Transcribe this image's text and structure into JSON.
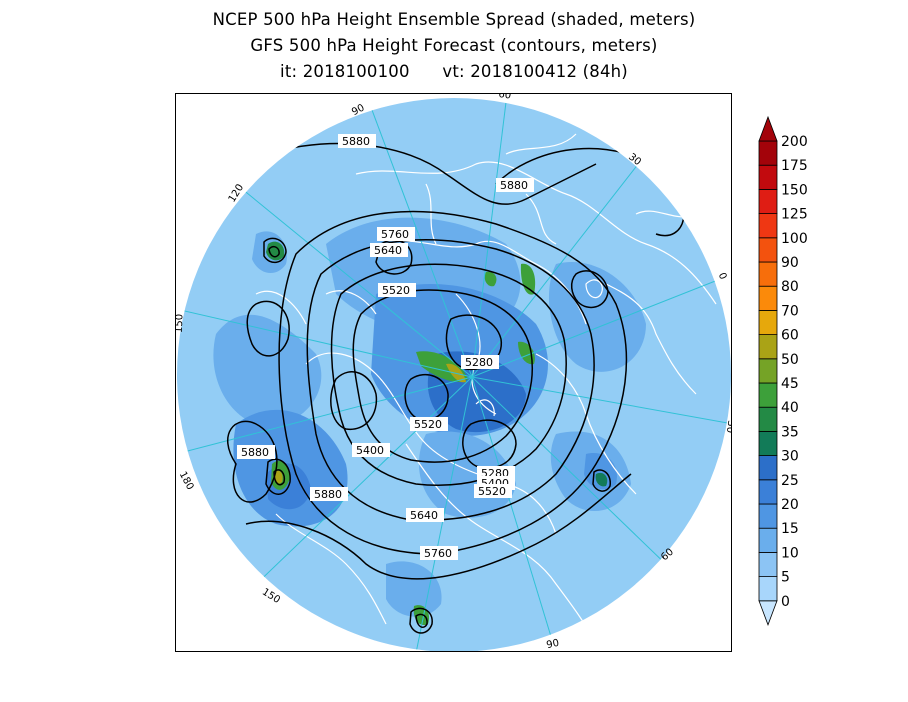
{
  "header": {
    "title_line1": "NCEP 500 hPa Height Ensemble Spread (shaded, meters)",
    "title_line2": "GFS 500 hPa Height Forecast (contours, meters)",
    "init_time": "it: 2018100100",
    "valid_time": "vt: 2018100412 (84h)"
  },
  "map": {
    "projection": "north-polar-stereographic",
    "background_color": "#93cdf5",
    "grid_color": "#31c2d6",
    "coastline_color": "#ffffff",
    "contour_color": "#000000",
    "meridian_labels": [
      "60",
      "30",
      "0",
      "30",
      "60",
      "90",
      "120",
      "150",
      "180",
      "150",
      "120",
      "90"
    ],
    "contour_labels": [
      "5880",
      "5880",
      "5760",
      "5640",
      "5520",
      "5280",
      "5520",
      "5400",
      "5280",
      "5400",
      "5520",
      "5640",
      "5760",
      "5880",
      "5880"
    ]
  },
  "colorbar": {
    "levels": [
      "0",
      "5",
      "10",
      "15",
      "20",
      "25",
      "30",
      "35",
      "40",
      "45",
      "50",
      "60",
      "70",
      "80",
      "90",
      "100",
      "125",
      "150",
      "175",
      "200"
    ],
    "colors": [
      "#c8e6ff",
      "#a8d6fb",
      "#8cc4f4",
      "#6aaeec",
      "#4f96e3",
      "#3b80d8",
      "#2c6fc9",
      "#127b58",
      "#238a45",
      "#3da03a",
      "#75a326",
      "#aaa316",
      "#e6a80c",
      "#fb8a0a",
      "#f76e0b",
      "#f3520e",
      "#ef3713",
      "#df1d14",
      "#c20a0e",
      "#a3030a"
    ]
  }
}
